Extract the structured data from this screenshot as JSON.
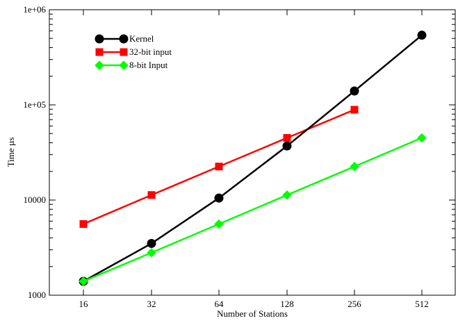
{
  "chart_data": {
    "type": "line",
    "title": "",
    "xlabel": "Number of Stations",
    "ylabel": "Time µs",
    "y_scale": "log",
    "ylim": [
      1000,
      1000000
    ],
    "x_categories": [
      "16",
      "32",
      "64",
      "128",
      "256",
      "512"
    ],
    "y_ticks": [
      1000,
      10000,
      100000,
      1000000
    ],
    "y_tick_labels": [
      "1000",
      "10000",
      "1e+05",
      "1e+06"
    ],
    "grid": false,
    "legend_position": "top-left",
    "series": [
      {
        "name": "Kernel",
        "color": "#000000",
        "marker": "circle",
        "x": [
          "16",
          "32",
          "64",
          "128",
          "256",
          "512"
        ],
        "values": [
          1400,
          3500,
          10500,
          37000,
          140000,
          540000
        ]
      },
      {
        "name": "32-bit input",
        "color": "#ff0000",
        "marker": "square",
        "x": [
          "16",
          "32",
          "64",
          "128",
          "256"
        ],
        "values": [
          5600,
          11300,
          22500,
          45000,
          89000
        ]
      },
      {
        "name": "8-bit Input",
        "color": "#00ff00",
        "marker": "diamond",
        "x": [
          "16",
          "32",
          "64",
          "128",
          "256",
          "512"
        ],
        "values": [
          1400,
          2800,
          5600,
          11300,
          22500,
          45000
        ]
      }
    ]
  }
}
